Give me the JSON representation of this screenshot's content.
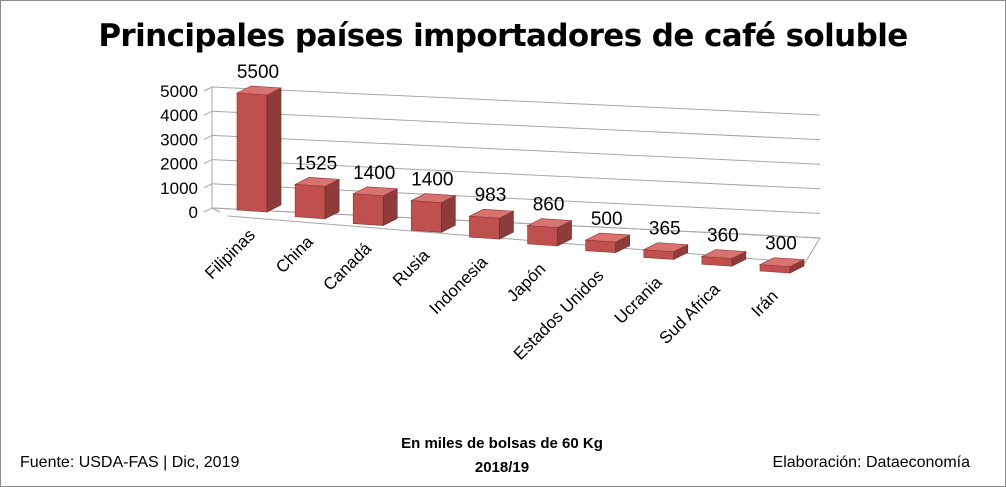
{
  "chart_data": {
    "type": "bar",
    "title": "Principales países importadores de café soluble",
    "categories": [
      "Filipinas",
      "China",
      "Canadá",
      "Rusia",
      "Indonesia",
      "Japón",
      "Estados Unidos",
      "Ucrania",
      "Sud Africa",
      "Irán"
    ],
    "values": [
      5500,
      1525,
      1400,
      1400,
      983,
      860,
      500,
      365,
      360,
      300
    ],
    "data_labels": [
      "5500",
      "1525",
      "1400",
      "1400",
      "983",
      "860",
      "500",
      "365",
      "360",
      "300"
    ],
    "y_ticks": [
      "0",
      "1000",
      "2000",
      "3000",
      "4000",
      "5000"
    ],
    "ylim": [
      0,
      5000
    ],
    "grid": true,
    "bar_color": "#c0504d",
    "xlabel": "",
    "ylabel": ""
  },
  "footer": {
    "source": "Fuente:  USDA-FAS | Dic, 2019",
    "unit_line1": "En miles de bolsas de 60 Kg",
    "unit_line2": "2018/19",
    "credit": "Elaboración: Dataeconomía"
  }
}
